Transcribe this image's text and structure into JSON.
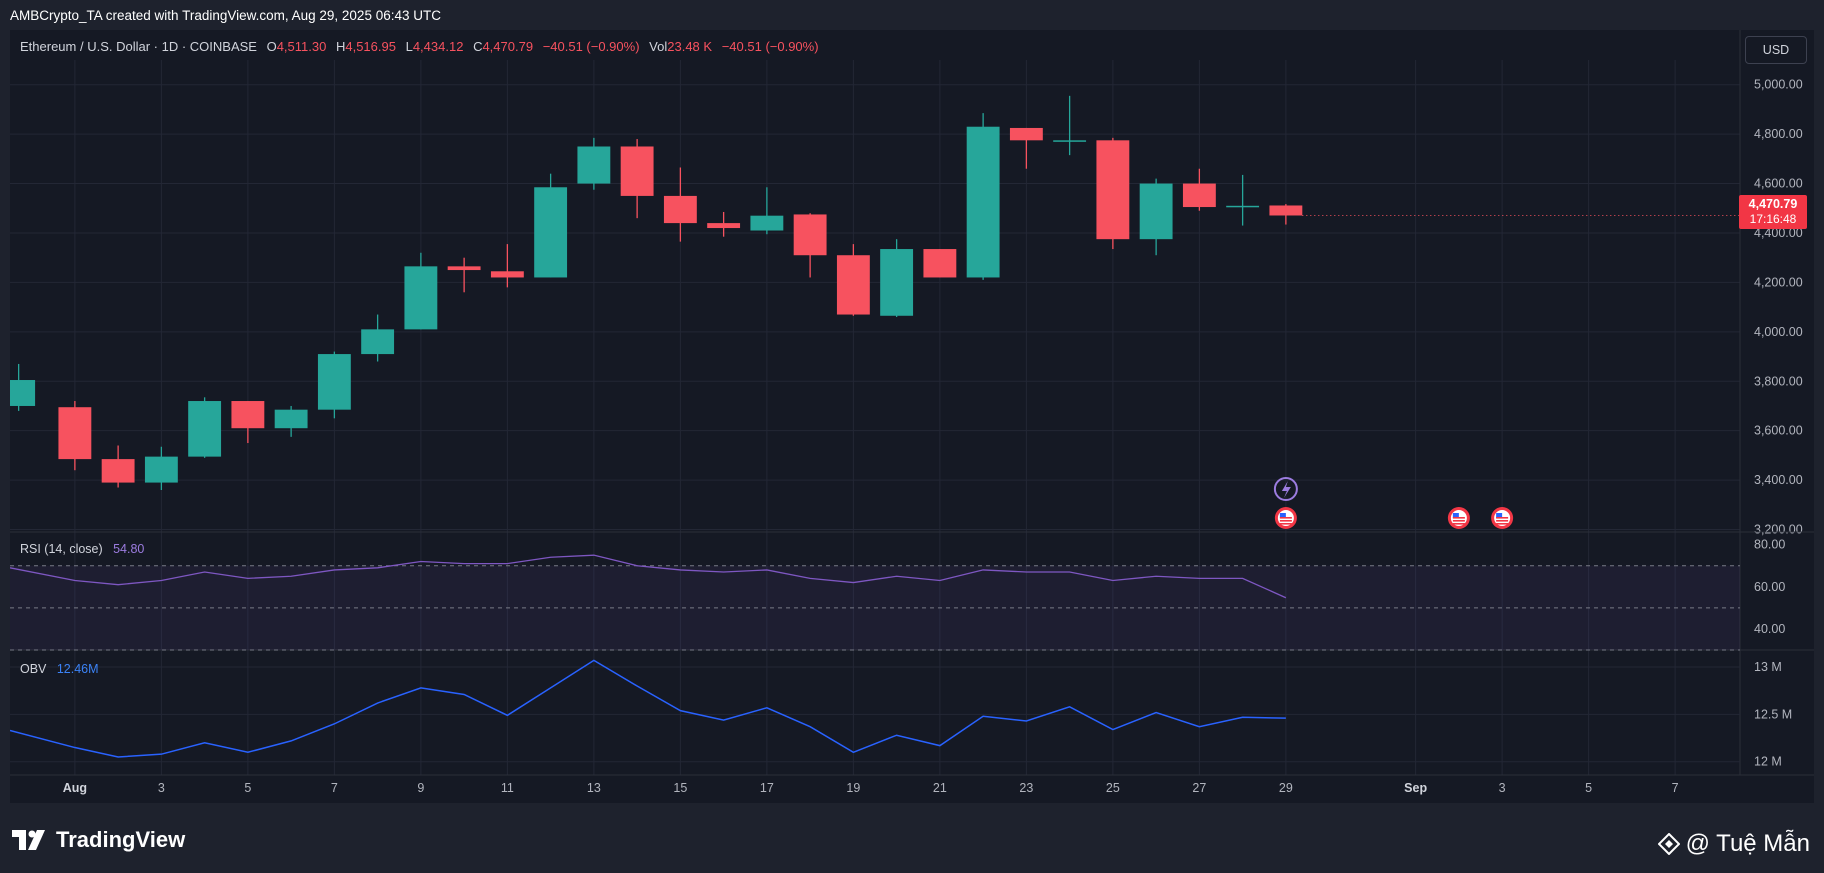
{
  "caption": "AMBCrypto_TA created with TradingView.com, Aug 29, 2025 06:43 UTC",
  "legend": {
    "symbol": "Ethereum / U.S. Dollar · 1D · COINBASE",
    "o_label": "O",
    "o_value": "4,511.30",
    "h_label": "H",
    "h_value": "4,516.95",
    "l_label": "L",
    "l_value": "4,434.12",
    "c_label": "C",
    "c_value": "4,470.79",
    "change": "−40.51 (−0.90%)",
    "vol_label": "Vol",
    "vol_value": "23.48 K",
    "vol_change": "−40.51 (−0.90%)"
  },
  "currency": "USD",
  "price_tag": {
    "price": "4,470.79",
    "countdown": "17:16:48"
  },
  "rsi_legend": {
    "label": "RSI (14, close)",
    "value": "54.80"
  },
  "obv_legend": {
    "label": "OBV",
    "value": "12.46M"
  },
  "footer": {
    "brand": "TradingView",
    "watermark": "@ Tuệ Mẫn"
  },
  "colors": {
    "up": "#26a69a",
    "down": "#f7525f",
    "background": "#151924",
    "rsi_line": "#7e57c2",
    "obv_line": "#2962ff",
    "grid": "#232735"
  },
  "chart_data": [
    {
      "type": "candlestick",
      "title": "Ethereum / U.S. Dollar · 1D · COINBASE",
      "price_ticks": [
        "3,200.00",
        "3,400.00",
        "3,600.00",
        "3,800.00",
        "4,000.00",
        "4,200.00",
        "4,400.00",
        "4,600.00",
        "4,800.00",
        "5,000.00"
      ],
      "price_range": [
        3190,
        5100
      ],
      "x_tick_labels": [
        "Aug",
        "3",
        "5",
        "7",
        "9",
        "11",
        "13",
        "15",
        "17",
        "19",
        "21",
        "23",
        "25",
        "27",
        "29",
        "Sep",
        "3",
        "5",
        "7"
      ],
      "x_tick_days": [
        1,
        3,
        5,
        7,
        9,
        11,
        13,
        15,
        17,
        19,
        21,
        23,
        25,
        27,
        29,
        32,
        34,
        36,
        38
      ],
      "x_range_days": [
        -0.5,
        39.5
      ],
      "grid": true,
      "candles": [
        {
          "day": -0.3,
          "o": 3700,
          "h": 3870,
          "l": 3680,
          "c": 3805
        },
        {
          "day": 1,
          "o": 3695,
          "h": 3720,
          "l": 3440,
          "c": 3485
        },
        {
          "day": 2,
          "o": 3485,
          "h": 3540,
          "l": 3370,
          "c": 3390
        },
        {
          "day": 3,
          "o": 3390,
          "h": 3535,
          "l": 3360,
          "c": 3495
        },
        {
          "day": 4,
          "o": 3495,
          "h": 3735,
          "l": 3490,
          "c": 3720
        },
        {
          "day": 5,
          "o": 3720,
          "h": 3720,
          "l": 3550,
          "c": 3610
        },
        {
          "day": 6,
          "o": 3610,
          "h": 3700,
          "l": 3575,
          "c": 3685
        },
        {
          "day": 7,
          "o": 3685,
          "h": 3920,
          "l": 3650,
          "c": 3910
        },
        {
          "day": 8,
          "o": 3910,
          "h": 4070,
          "l": 3880,
          "c": 4010
        },
        {
          "day": 9,
          "o": 4010,
          "h": 4320,
          "l": 4010,
          "c": 4265
        },
        {
          "day": 10,
          "o": 4265,
          "h": 4300,
          "l": 4160,
          "c": 4250
        },
        {
          "day": 11,
          "o": 4245,
          "h": 4355,
          "l": 4180,
          "c": 4220
        },
        {
          "day": 12,
          "o": 4220,
          "h": 4640,
          "l": 4220,
          "c": 4585
        },
        {
          "day": 13,
          "o": 4600,
          "h": 4785,
          "l": 4575,
          "c": 4750
        },
        {
          "day": 14,
          "o": 4750,
          "h": 4780,
          "l": 4460,
          "c": 4550
        },
        {
          "day": 15,
          "o": 4550,
          "h": 4665,
          "l": 4365,
          "c": 4440
        },
        {
          "day": 16,
          "o": 4440,
          "h": 4485,
          "l": 4385,
          "c": 4420
        },
        {
          "day": 17,
          "o": 4410,
          "h": 4585,
          "l": 4395,
          "c": 4470
        },
        {
          "day": 18,
          "o": 4475,
          "h": 4480,
          "l": 4220,
          "c": 4310
        },
        {
          "day": 19,
          "o": 4310,
          "h": 4355,
          "l": 4065,
          "c": 4070
        },
        {
          "day": 20,
          "o": 4065,
          "h": 4375,
          "l": 4060,
          "c": 4335
        },
        {
          "day": 21,
          "o": 4335,
          "h": 4335,
          "l": 4220,
          "c": 4220
        },
        {
          "day": 22,
          "o": 4220,
          "h": 4885,
          "l": 4210,
          "c": 4830
        },
        {
          "day": 23,
          "o": 4825,
          "h": 4825,
          "l": 4660,
          "c": 4775
        },
        {
          "day": 24,
          "o": 4775,
          "h": 4955,
          "l": 4715,
          "c": 4775
        },
        {
          "day": 25,
          "o": 4775,
          "h": 4785,
          "l": 4335,
          "c": 4375
        },
        {
          "day": 26,
          "o": 4375,
          "h": 4620,
          "l": 4310,
          "c": 4600
        },
        {
          "day": 27,
          "o": 4600,
          "h": 4660,
          "l": 4490,
          "c": 4505
        },
        {
          "day": 28,
          "o": 4510,
          "h": 4635,
          "l": 4430,
          "c": 4510
        },
        {
          "day": 29,
          "o": 4511.3,
          "h": 4516.95,
          "l": 4434.12,
          "c": 4470.79
        }
      ]
    },
    {
      "type": "line",
      "name": "RSI (14, close)",
      "y_ticks": [
        "80.00",
        "60.00",
        "40.00"
      ],
      "y_range": [
        30,
        86
      ],
      "bands": [
        70,
        50,
        30
      ],
      "series": [
        {
          "name": "RSI (14, close)",
          "days": [
            -0.5,
            1,
            2,
            3,
            4,
            5,
            6,
            7,
            8,
            9,
            10,
            11,
            12,
            13,
            14,
            15,
            16,
            17,
            18,
            19,
            20,
            21,
            22,
            23,
            24,
            25,
            26,
            27,
            28,
            29
          ],
          "values": [
            69,
            63,
            61,
            63,
            67,
            64,
            65,
            68,
            69,
            72,
            71,
            71,
            74,
            75,
            70,
            68,
            67,
            68,
            64,
            62,
            65,
            63,
            68,
            67,
            67,
            63,
            65,
            64,
            64,
            54.8
          ]
        }
      ]
    },
    {
      "type": "line",
      "name": "OBV",
      "y_ticks": [
        "13 M",
        "12.5 M",
        "12 M"
      ],
      "y_tick_values": [
        13,
        12.5,
        12
      ],
      "y_range": [
        11.86,
        13.18
      ],
      "series": [
        {
          "name": "OBV",
          "days": [
            -0.5,
            1,
            2,
            3,
            4,
            5,
            6,
            7,
            8,
            9,
            10,
            11,
            12,
            13,
            14,
            15,
            16,
            17,
            18,
            19,
            20,
            21,
            22,
            23,
            24,
            25,
            26,
            27,
            28,
            29
          ],
          "values": [
            12.33,
            12.15,
            12.05,
            12.08,
            12.2,
            12.1,
            12.22,
            12.4,
            12.62,
            12.78,
            12.71,
            12.49,
            12.78,
            13.07,
            12.8,
            12.54,
            12.44,
            12.57,
            12.37,
            12.1,
            12.28,
            12.17,
            12.48,
            12.43,
            12.58,
            12.34,
            12.52,
            12.37,
            12.47,
            12.46
          ]
        }
      ]
    }
  ]
}
